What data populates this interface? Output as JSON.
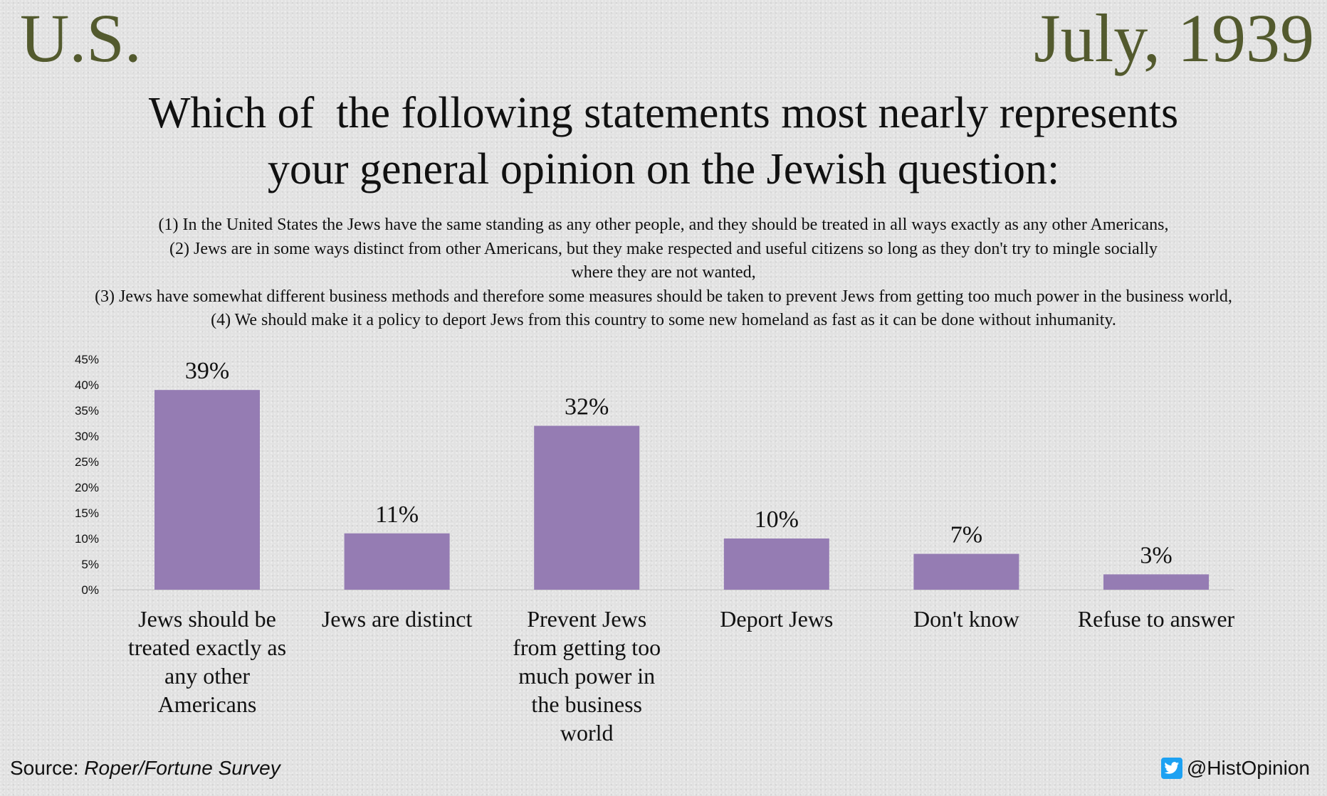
{
  "header": {
    "country": "U.S.",
    "date": "July, 1939"
  },
  "question": {
    "line1": "Which of  the following statements most nearly represents",
    "line2": "your general opinion on the Jewish question:"
  },
  "options": [
    "(1) In the United States the Jews have the same standing as any other people, and they should be treated in all ways exactly as any other Americans,",
    "(2) Jews are in some ways distinct from other Americans, but they make respected and useful citizens so long as they don't try to mingle socially",
    "where they are not wanted,",
    "(3) Jews have somewhat different business methods and therefore some measures should be taken to prevent Jews from getting too much power in the business world,",
    "(4) We should make it a policy to deport Jews from this country to some new homeland as fast as it can be done without inhumanity."
  ],
  "chart_data": {
    "type": "bar",
    "categories": [
      [
        "Jews should be",
        "treated exactly as",
        "any other",
        "Americans"
      ],
      [
        "Jews are distinct"
      ],
      [
        "Prevent Jews",
        "from getting too",
        "much power in",
        "the business",
        "world"
      ],
      [
        "Deport Jews"
      ],
      [
        "Don't know"
      ],
      [
        "Refuse to answer"
      ]
    ],
    "values": [
      39,
      11,
      32,
      10,
      7,
      3
    ],
    "data_labels": [
      "39%",
      "11%",
      "32%",
      "10%",
      "7%",
      "3%"
    ],
    "ylim": [
      0,
      45
    ],
    "yticks": [
      "0%",
      "5%",
      "10%",
      "15%",
      "20%",
      "25%",
      "30%",
      "35%",
      "40%",
      "45%"
    ],
    "grid": false,
    "bar_color": "#957cb3"
  },
  "footer": {
    "source_label": "Source: ",
    "source_name": "Roper/Fortune Survey",
    "handle": "@HistOpinion",
    "handle_icon": "twitter-bird-icon"
  },
  "colors": {
    "title_accent": "#535a2e",
    "bar": "#957cb3",
    "twitter": "#1da1f2"
  }
}
